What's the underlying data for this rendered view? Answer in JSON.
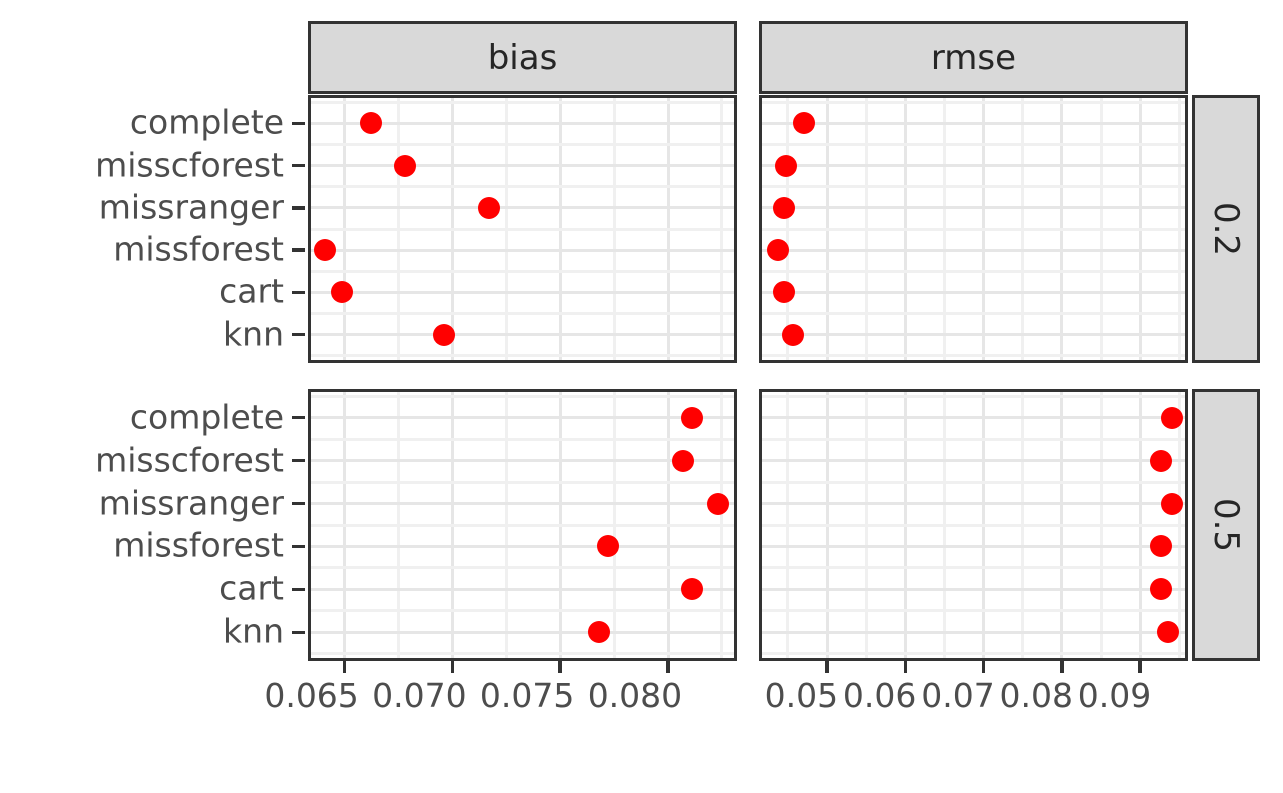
{
  "chart_data": {
    "type": "scatter",
    "title": "",
    "facet_cols": [
      "bias",
      "rmse"
    ],
    "facet_rows": [
      "0.2",
      "0.5"
    ],
    "categories": [
      "complete",
      "misscforest",
      "missranger",
      "missforest",
      "cart",
      "knn"
    ],
    "x_axes": {
      "bias": {
        "ticks": [
          0.065,
          0.07,
          0.075,
          0.08
        ],
        "tick_labels": [
          "0.065",
          "0.070",
          "0.075",
          "0.080"
        ],
        "range": [
          0.0633,
          0.0832
        ]
      },
      "rmse": {
        "ticks": [
          0.05,
          0.06,
          0.07,
          0.08,
          0.09
        ],
        "tick_labels": [
          "0.05",
          "0.06",
          "0.07",
          "0.08",
          "0.09"
        ],
        "range": [
          0.0413,
          0.0961
        ]
      }
    },
    "series": [
      {
        "facet_row": "0.2",
        "facet_col": "bias",
        "values": [
          0.0662,
          0.0678,
          0.0717,
          0.0641,
          0.0649,
          0.0696
        ]
      },
      {
        "facet_row": "0.2",
        "facet_col": "rmse",
        "values": [
          0.0471,
          0.0448,
          0.0445,
          0.0437,
          0.0445,
          0.0457
        ]
      },
      {
        "facet_row": "0.5",
        "facet_col": "bias",
        "values": [
          0.0811,
          0.0807,
          0.0823,
          0.0772,
          0.0811,
          0.0768
        ]
      },
      {
        "facet_row": "0.5",
        "facet_col": "rmse",
        "values": [
          0.094,
          0.0926,
          0.094,
          0.0926,
          0.0927,
          0.0936
        ]
      }
    ],
    "point_color": "#FF0000",
    "legend_position": "none",
    "grid": "major+minor",
    "xlabel": "",
    "ylabel": ""
  },
  "colors": {
    "point": "#FF0000",
    "strip_bg": "#D9D9D9",
    "border": "#333333",
    "grid_major": "#E6E6E6",
    "grid_minor": "#F0F0F0",
    "axis_text": "#4D4D4D",
    "strip_text": "#262626",
    "tick": "#333333",
    "background": "#FFFFFF"
  }
}
